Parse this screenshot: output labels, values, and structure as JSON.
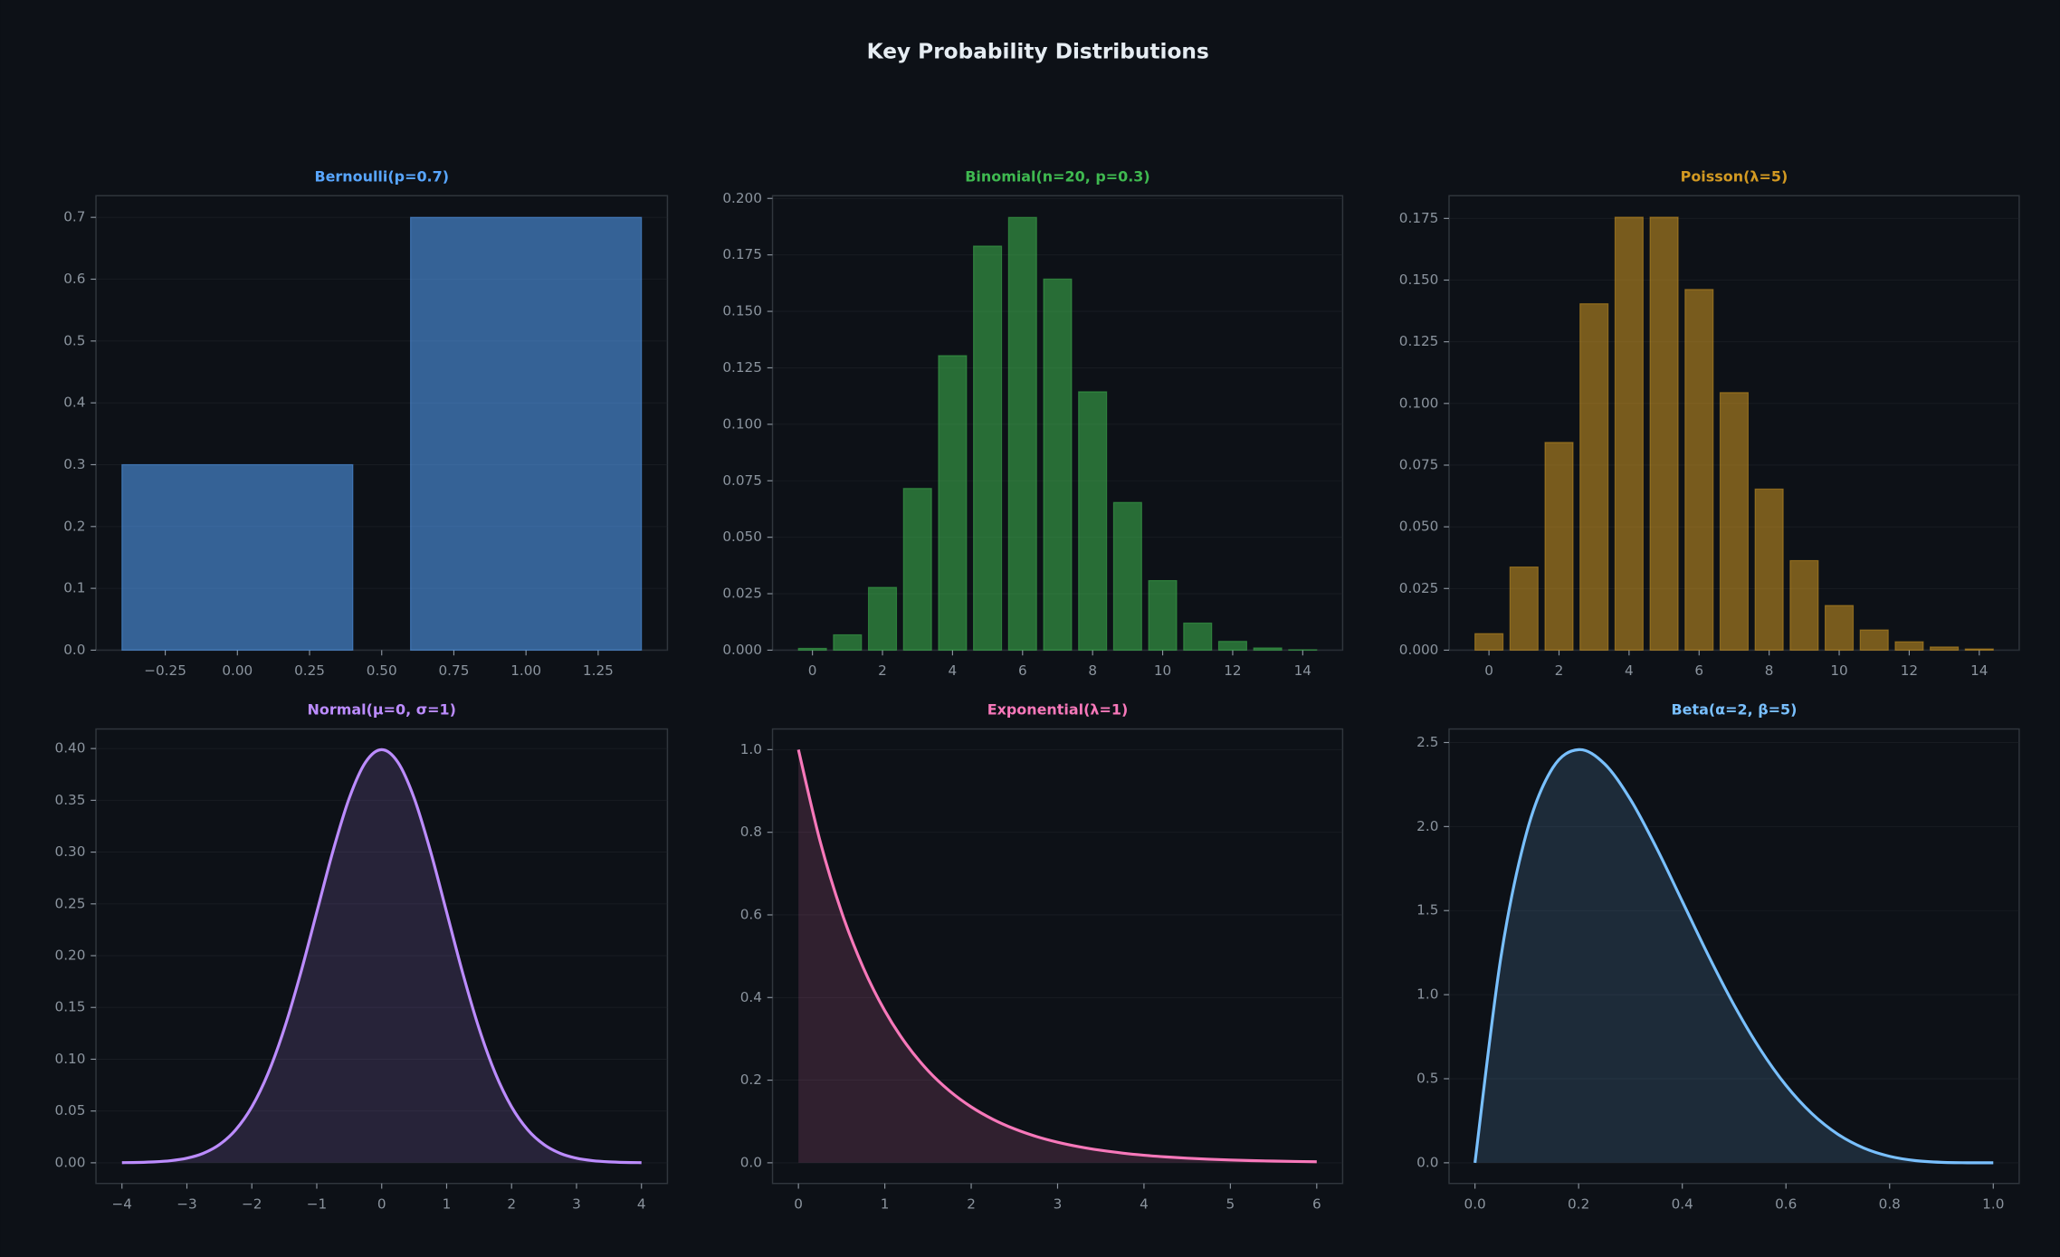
{
  "title": "Key Probability Distributions",
  "chart_data": [
    {
      "type": "bar",
      "title": "Bernoulli(p=0.7)",
      "color": "#58a6ff",
      "grid": true,
      "x": [
        0,
        1
      ],
      "values": [
        0.3,
        0.7
      ],
      "xlim": [
        -0.49,
        1.49
      ],
      "ylim": [
        0,
        0.735
      ],
      "xticks": [
        {
          "value": -0.25,
          "label": "−0.25"
        },
        {
          "value": 0,
          "label": "0.00"
        },
        0.25,
        {
          "value": 0.5,
          "label": "0.50"
        },
        0.75,
        {
          "value": 1,
          "label": "1.00"
        },
        1.25
      ],
      "yticks": [
        {
          "value": 0,
          "label": "0.0"
        },
        0.1,
        0.2,
        0.3,
        0.4,
        0.5,
        0.6,
        0.7
      ]
    },
    {
      "type": "bar",
      "title": "Binomial(n=20, p=0.3)",
      "color": "#3fb950",
      "grid": true,
      "x": [
        0,
        1,
        2,
        3,
        4,
        5,
        6,
        7,
        8,
        9,
        10,
        11,
        12,
        13,
        14
      ],
      "values": [
        0.0008,
        0.0068,
        0.0278,
        0.0716,
        0.1304,
        0.1789,
        0.1916,
        0.1643,
        0.1144,
        0.0654,
        0.0308,
        0.012,
        0.0039,
        0.001,
        0.0002
      ],
      "xlim": [
        -1.14,
        15.14
      ],
      "ylim": [
        0,
        0.2012
      ],
      "xticks": [
        0,
        2,
        4,
        6,
        8,
        10,
        12,
        14
      ],
      "yticks": [
        {
          "value": 0,
          "label": "0.000"
        },
        0.025,
        {
          "value": 0.05,
          "label": "0.050"
        },
        0.075,
        {
          "value": 0.1,
          "label": "0.100"
        },
        0.125,
        {
          "value": 0.15,
          "label": "0.150"
        },
        0.175,
        {
          "value": 0.2,
          "label": "0.200"
        }
      ]
    },
    {
      "type": "bar",
      "title": "Poisson(λ=5)",
      "color": "#d29922",
      "grid": true,
      "x": [
        0,
        1,
        2,
        3,
        4,
        5,
        6,
        7,
        8,
        9,
        10,
        11,
        12,
        13,
        14
      ],
      "values": [
        0.0067,
        0.0337,
        0.0842,
        0.1404,
        0.1755,
        0.1755,
        0.1462,
        0.1044,
        0.0653,
        0.0363,
        0.0181,
        0.0082,
        0.0034,
        0.0013,
        0.0005
      ],
      "xlim": [
        -1.14,
        15.14
      ],
      "ylim": [
        0,
        0.1842
      ],
      "xticks": [
        0,
        2,
        4,
        6,
        8,
        10,
        12,
        14
      ],
      "yticks": [
        {
          "value": 0,
          "label": "0.000"
        },
        0.025,
        {
          "value": 0.05,
          "label": "0.050"
        },
        0.075,
        {
          "value": 0.1,
          "label": "0.100"
        },
        0.125,
        {
          "value": 0.15,
          "label": "0.150"
        },
        0.175
      ]
    },
    {
      "type": "area",
      "title": "Normal(μ=0, σ=1)",
      "color": "#bc8cff",
      "grid": true,
      "x": [
        -4,
        -3.75,
        -3.5,
        -3.25,
        -3,
        -2.75,
        -2.5,
        -2.25,
        -2,
        -1.75,
        -1.5,
        -1.25,
        -1,
        -0.75,
        -0.5,
        -0.25,
        0,
        0.25,
        0.5,
        0.75,
        1,
        1.25,
        1.5,
        1.75,
        2,
        2.25,
        2.5,
        2.75,
        3,
        3.25,
        3.5,
        3.75,
        4
      ],
      "values": [
        0.00013,
        0.00035,
        0.00087,
        0.00203,
        0.00443,
        0.00909,
        0.01753,
        0.03174,
        0.05399,
        0.08628,
        0.12952,
        0.18265,
        0.24197,
        0.30114,
        0.35207,
        0.38667,
        0.39894,
        0.38667,
        0.35207,
        0.30114,
        0.24197,
        0.18265,
        0.12952,
        0.08628,
        0.05399,
        0.03174,
        0.01753,
        0.00909,
        0.00443,
        0.00203,
        0.00087,
        0.00035,
        0.00013
      ],
      "xlim": [
        -4.4,
        4.4
      ],
      "ylim": [
        -0.01995,
        0.41889
      ],
      "xticks": [
        {
          "value": -4,
          "label": "−4"
        },
        {
          "value": -3,
          "label": "−3"
        },
        {
          "value": -2,
          "label": "−2"
        },
        {
          "value": -1,
          "label": "−1"
        },
        0,
        1,
        2,
        3,
        4
      ],
      "yticks": [
        {
          "value": 0,
          "label": "0.00"
        },
        0.05,
        {
          "value": 0.1,
          "label": "0.10"
        },
        0.15,
        {
          "value": 0.2,
          "label": "0.20"
        },
        0.25,
        {
          "value": 0.3,
          "label": "0.30"
        },
        0.35,
        {
          "value": 0.4,
          "label": "0.40"
        }
      ]
    },
    {
      "type": "area",
      "title": "Exponential(λ=1)",
      "color": "#f778ba",
      "grid": true,
      "x": [
        0,
        0.25,
        0.5,
        0.75,
        1,
        1.25,
        1.5,
        1.75,
        2,
        2.25,
        2.5,
        2.75,
        3,
        3.25,
        3.5,
        3.75,
        4,
        4.25,
        4.5,
        4.75,
        5,
        5.25,
        5.5,
        5.75,
        6
      ],
      "values": [
        1,
        0.7788,
        0.6065,
        0.4724,
        0.3679,
        0.2865,
        0.2231,
        0.1738,
        0.1353,
        0.1054,
        0.0821,
        0.0639,
        0.0498,
        0.0388,
        0.0302,
        0.0235,
        0.0183,
        0.0143,
        0.0111,
        0.0087,
        0.0067,
        0.0052,
        0.0041,
        0.0032,
        0.0025
      ],
      "xlim": [
        -0.3,
        6.3
      ],
      "ylim": [
        -0.05,
        1.05
      ],
      "xticks": [
        0,
        1,
        2,
        3,
        4,
        5,
        6
      ],
      "yticks": [
        {
          "value": 0,
          "label": "0.0"
        },
        0.2,
        0.4,
        0.6,
        0.8,
        {
          "value": 1,
          "label": "1.0"
        }
      ]
    },
    {
      "type": "area",
      "title": "Beta(α=2, β=5)",
      "color": "#79c0ff",
      "grid": true,
      "x": [
        0,
        0.05,
        0.1,
        0.15,
        0.2,
        0.25,
        0.3,
        0.35,
        0.4,
        0.45,
        0.5,
        0.55,
        0.6,
        0.65,
        0.7,
        0.75,
        0.8,
        0.85,
        0.9,
        0.95,
        1
      ],
      "values": [
        0,
        1.2218,
        1.9683,
        2.349,
        2.4576,
        2.373,
        2.1609,
        1.8744,
        1.5552,
        1.2354,
        0.9375,
        0.6767,
        0.4608,
        0.2927,
        0.1701,
        0.0879,
        0.0384,
        0.0129,
        0.0027,
        0.0002,
        0
      ],
      "xlim": [
        -0.05,
        1.05
      ],
      "ylim": [
        -0.1229,
        2.5805
      ],
      "xticks": [
        {
          "value": 0,
          "label": "0.0"
        },
        0.2,
        0.4,
        0.6,
        0.8,
        {
          "value": 1,
          "label": "1.0"
        }
      ],
      "yticks": [
        {
          "value": 0,
          "label": "0.0"
        },
        0.5,
        {
          "value": 1,
          "label": "1.0"
        },
        1.5,
        {
          "value": 2,
          "label": "2.0"
        },
        2.5
      ]
    }
  ]
}
